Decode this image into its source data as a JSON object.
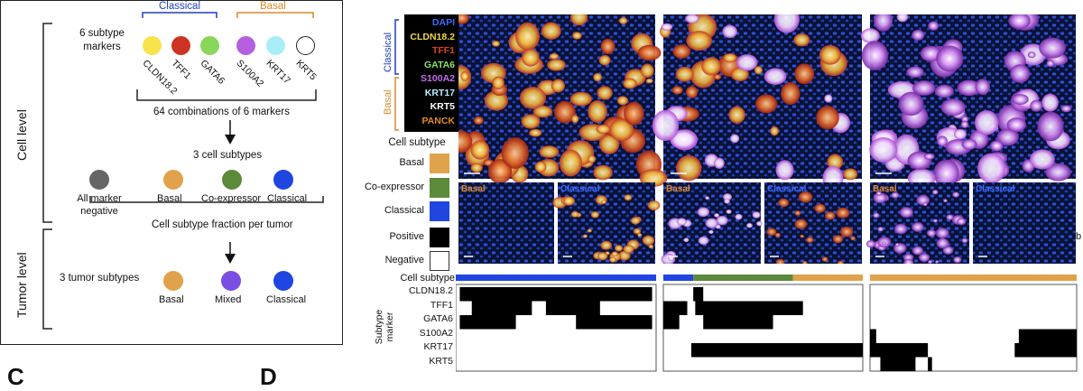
{
  "panelA": {
    "cell_level_label": "Cell level",
    "tumor_level_label": "Tumor level",
    "markers_heading": "6 subtype\nmarkers",
    "classical_group": "Classical",
    "basal_group": "Basal",
    "markers": [
      {
        "name": "CLDN18.2",
        "color": "#f7e34b"
      },
      {
        "name": "TFF1",
        "color": "#cc3322"
      },
      {
        "name": "GATA6",
        "color": "#88d65a"
      },
      {
        "name": "S100A2",
        "color": "#b55fe0"
      },
      {
        "name": "KRT17",
        "color": "#a9eef7"
      },
      {
        "name": "KRT5",
        "color": "#ffffff"
      }
    ],
    "combinations_text": "64 combinations of 6 markers",
    "cell_subtypes_text": "3 cell subtypes",
    "negative_label": "All marker\nnegative",
    "negative_color": "#666666",
    "cell_subtypes": [
      {
        "name": "Basal",
        "color": "#e1a24c"
      },
      {
        "name": "Co-expressor",
        "color": "#5b8a3a"
      },
      {
        "name": "Classical",
        "color": "#1f46e0"
      }
    ],
    "fraction_text": "Cell subtype fraction per tumor",
    "tumor_subtypes_text": "3 tumor subtypes",
    "tumor_subtypes": [
      {
        "name": "Basal",
        "color": "#e1a24c"
      },
      {
        "name": "Mixed",
        "color": "#7a4ee0"
      },
      {
        "name": "Classical",
        "color": "#1f46e0"
      }
    ],
    "classical_color": "#1f3fc4",
    "basal_color": "#d98a2b"
  },
  "panelB": {
    "channel_labels": [
      {
        "name": "DAPI",
        "color": "#3d6cff"
      },
      {
        "name": "CLDN18.2",
        "color": "#f3d845"
      },
      {
        "name": "TFF1",
        "color": "#e0402a"
      },
      {
        "name": "GATA6",
        "color": "#8be36a"
      },
      {
        "name": "S100A2",
        "color": "#c96cf0"
      },
      {
        "name": "KRT17",
        "color": "#b6f2ff"
      },
      {
        "name": "KRT5",
        "color": "#ffffff"
      },
      {
        "name": "PANCK",
        "color": "#e08a2c"
      }
    ],
    "group_classical": "Classical",
    "group_basal": "Basal",
    "legend_title": "Cell subtype",
    "legend_items": [
      {
        "name": "Basal",
        "color": "#e1a24c"
      },
      {
        "name": "Co-expressor",
        "color": "#5b8a3a"
      },
      {
        "name": "Classical",
        "color": "#1f46e0"
      },
      {
        "name": "Positive",
        "color": "#000000"
      },
      {
        "name": "Negative",
        "color": "#ffffff"
      }
    ],
    "inset_basal": "Basal",
    "inset_classical": "Classical",
    "cell_subtype_row_label": "Cell subtype",
    "subtype_marker_axis": "Subtype\nmarker",
    "heatmap_rows": [
      "CLDN18.2",
      "TFF1",
      "GATA6",
      "S100A2",
      "KRT17",
      "KRT5"
    ],
    "column_subtype_bars": [
      [
        {
          "frac": 1.0,
          "color": "#1f46e0"
        }
      ],
      [
        {
          "frac": 0.15,
          "color": "#1f46e0"
        },
        {
          "frac": 0.5,
          "color": "#5b8a3a"
        },
        {
          "frac": 0.35,
          "color": "#e1a24c"
        }
      ],
      [
        {
          "frac": 1.0,
          "color": "#e1a24c"
        }
      ]
    ]
  },
  "bottom_letters": [
    "C",
    "D"
  ],
  "right_edge_mark": "b"
}
